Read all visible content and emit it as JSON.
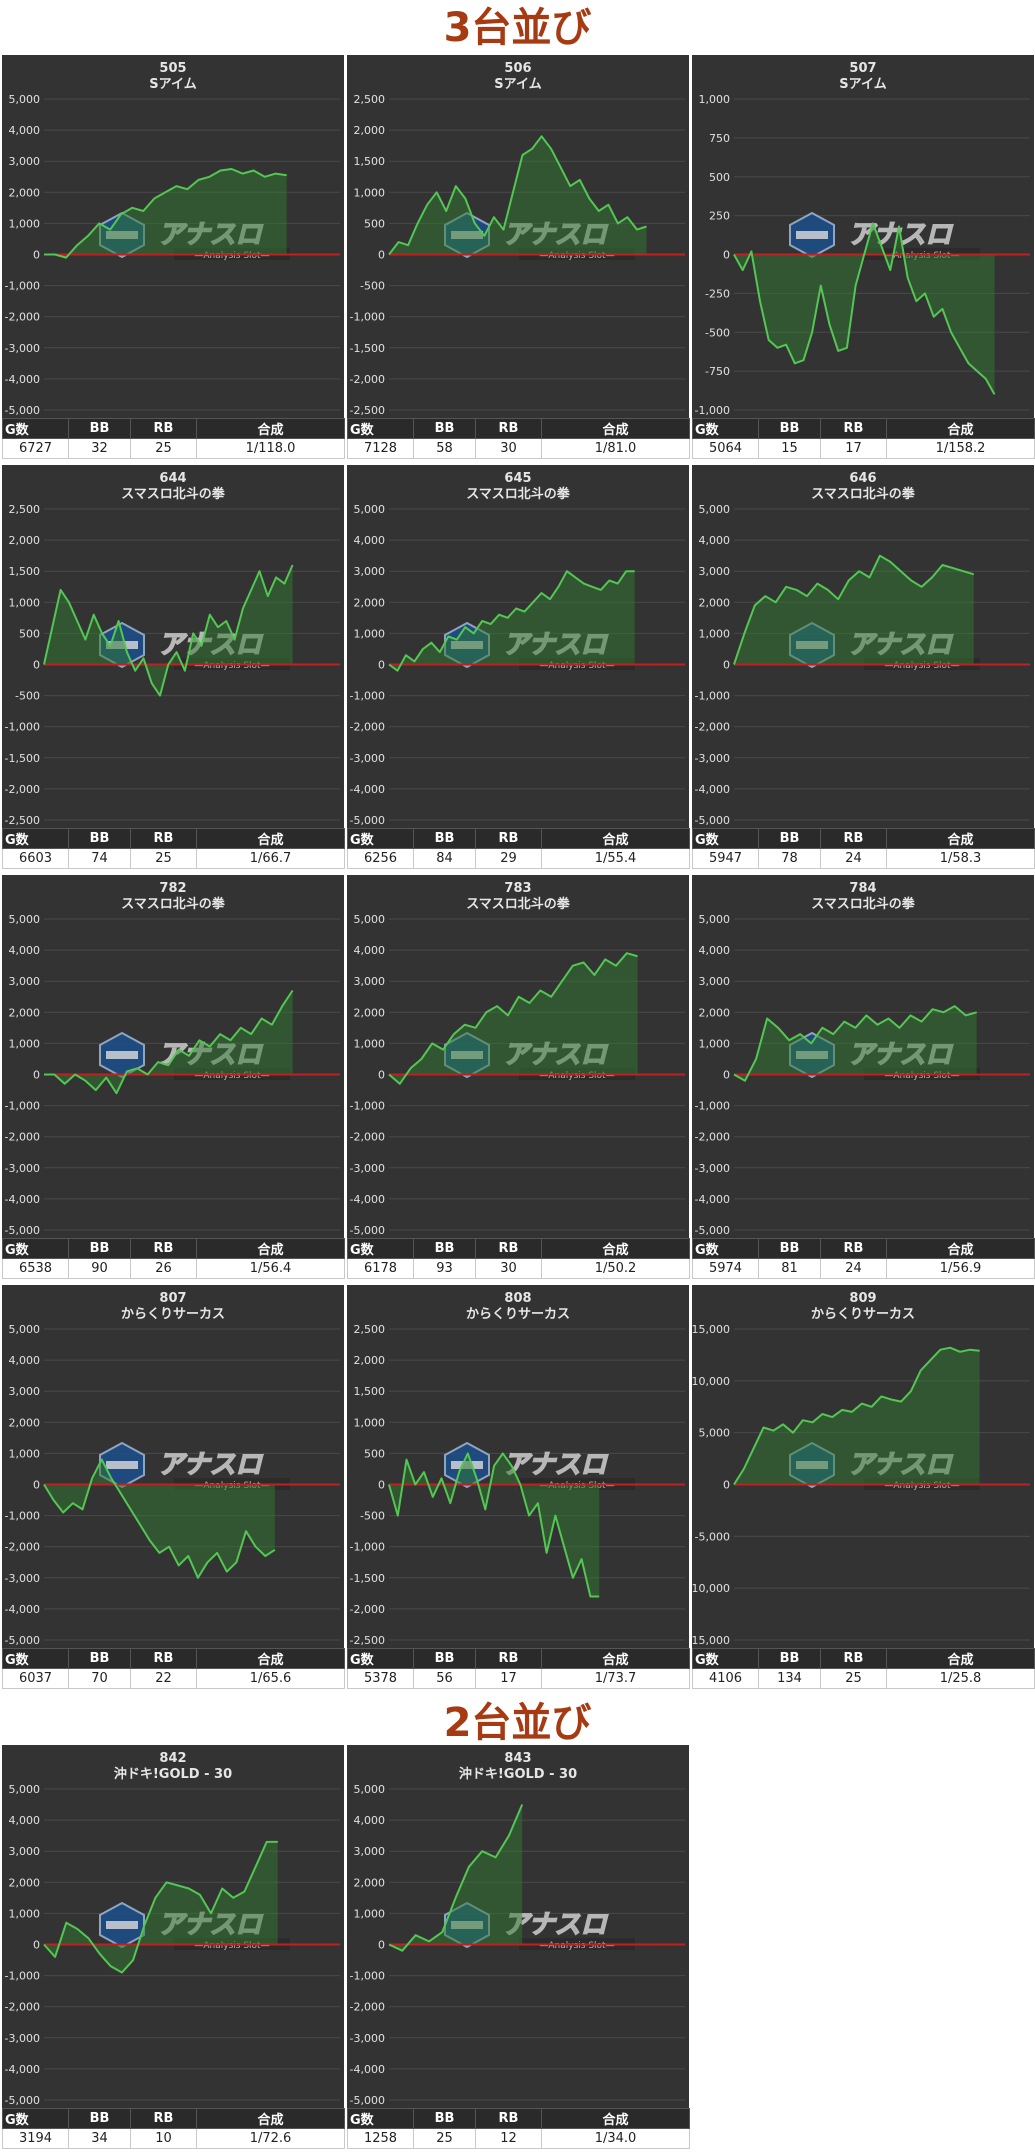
{
  "page": {
    "section1_title": "3台並び",
    "section2_title": "2台並び",
    "watermark_brand": "アナスロ",
    "watermark_sub": "—Analysis Slot—",
    "table_headers": {
      "g": "G数",
      "bb": "BB",
      "rb": "RB",
      "combined": "合成"
    },
    "colors": {
      "panel_bg": "#333333",
      "line": "#53c653",
      "fill": "#2f7a2f",
      "zero_line": "#c02020",
      "title": "#a63a12"
    }
  },
  "chart_data": [
    {
      "type": "area",
      "machine_no": "505",
      "model": "Sアイム",
      "ylim": [
        -5000,
        5000
      ],
      "yticks": [
        5000,
        4000,
        3000,
        2000,
        1000,
        0,
        -1000,
        -2000,
        -3000,
        -4000,
        -5000
      ],
      "x_end": 0.82,
      "y": [
        0,
        0,
        -100,
        300,
        600,
        1000,
        800,
        1300,
        1500,
        1400,
        1800,
        2000,
        2200,
        2100,
        2400,
        2500,
        2700,
        2750,
        2600,
        2700,
        2500,
        2600,
        2550
      ],
      "stats": {
        "g": "6727",
        "bb": "32",
        "rb": "25",
        "combined": "1/118.0"
      }
    },
    {
      "type": "area",
      "machine_no": "506",
      "model": "Sアイム",
      "ylim": [
        -2500,
        2500
      ],
      "yticks": [
        2500,
        2000,
        1500,
        1000,
        500,
        0,
        -500,
        -1000,
        -1500,
        -2000,
        -2500
      ],
      "x_end": 0.87,
      "y": [
        0,
        200,
        150,
        500,
        800,
        1000,
        700,
        1100,
        900,
        500,
        300,
        600,
        400,
        1000,
        1600,
        1700,
        1900,
        1700,
        1400,
        1100,
        1200,
        900,
        700,
        800,
        500,
        600,
        400,
        450
      ],
      "stats": {
        "g": "7128",
        "bb": "58",
        "rb": "30",
        "combined": "1/81.0"
      }
    },
    {
      "type": "area",
      "machine_no": "507",
      "model": "Sアイム",
      "ylim": [
        -1000,
        1000
      ],
      "yticks": [
        1000,
        750,
        500,
        250,
        0,
        -250,
        -500,
        -750,
        -1000
      ],
      "x_end": 0.88,
      "y": [
        0,
        -100,
        20,
        -300,
        -550,
        -600,
        -580,
        -700,
        -680,
        -500,
        -200,
        -450,
        -620,
        -600,
        -200,
        0,
        200,
        50,
        -100,
        180,
        -150,
        -300,
        -250,
        -400,
        -350,
        -500,
        -600,
        -700,
        -750,
        -800,
        -900
      ],
      "stats": {
        "g": "5064",
        "bb": "15",
        "rb": "17",
        "combined": "1/158.2"
      }
    },
    {
      "type": "area",
      "machine_no": "644",
      "model": "スマスロ北斗の拳",
      "ylim": [
        -2500,
        2500
      ],
      "yticks": [
        2500,
        2000,
        1500,
        1000,
        500,
        0,
        -500,
        -1000,
        -1500,
        -2000,
        -2500
      ],
      "x_end": 0.84,
      "y": [
        0,
        600,
        1200,
        1000,
        700,
        400,
        800,
        500,
        300,
        700,
        200,
        -100,
        100,
        -300,
        -500,
        0,
        200,
        -100,
        500,
        300,
        800,
        600,
        700,
        400,
        900,
        1200,
        1500,
        1100,
        1400,
        1300,
        1600
      ],
      "stats": {
        "g": "6603",
        "bb": "74",
        "rb": "25",
        "combined": "1/66.7"
      }
    },
    {
      "type": "area",
      "machine_no": "645",
      "model": "スマスロ北斗の拳",
      "ylim": [
        -5000,
        5000
      ],
      "yticks": [
        5000,
        4000,
        3000,
        2000,
        1000,
        0,
        -1000,
        -2000,
        -3000,
        -4000,
        -5000
      ],
      "x_end": 0.83,
      "y": [
        0,
        -200,
        300,
        100,
        500,
        700,
        400,
        900,
        800,
        1200,
        1000,
        1400,
        1300,
        1600,
        1500,
        1800,
        1700,
        2000,
        2300,
        2100,
        2500,
        3000,
        2800,
        2600,
        2500,
        2400,
        2700,
        2600,
        3000,
        3000
      ],
      "stats": {
        "g": "6256",
        "bb": "84",
        "rb": "29",
        "combined": "1/55.4"
      }
    },
    {
      "type": "area",
      "machine_no": "646",
      "model": "スマスロ北斗の拳",
      "ylim": [
        -5000,
        5000
      ],
      "yticks": [
        5000,
        4000,
        3000,
        2000,
        1000,
        0,
        -1000,
        -2000,
        -3000,
        -4000,
        -5000
      ],
      "x_end": 0.81,
      "y": [
        0,
        1000,
        1900,
        2200,
        2000,
        2500,
        2400,
        2200,
        2600,
        2400,
        2100,
        2700,
        3000,
        2800,
        3500,
        3300,
        3000,
        2700,
        2500,
        2800,
        3200,
        3100,
        3000,
        2900
      ],
      "stats": {
        "g": "5947",
        "bb": "78",
        "rb": "24",
        "combined": "1/58.3"
      }
    },
    {
      "type": "area",
      "machine_no": "782",
      "model": "スマスロ北斗の拳",
      "ylim": [
        -5000,
        5000
      ],
      "yticks": [
        5000,
        4000,
        3000,
        2000,
        1000,
        0,
        -1000,
        -2000,
        -3000,
        -4000,
        -5000
      ],
      "x_end": 0.84,
      "y": [
        0,
        0,
        -300,
        0,
        -200,
        -500,
        -100,
        -600,
        100,
        200,
        0,
        400,
        300,
        800,
        600,
        1100,
        900,
        1300,
        1100,
        1500,
        1300,
        1800,
        1600,
        2200,
        2700
      ],
      "stats": {
        "g": "6538",
        "bb": "90",
        "rb": "26",
        "combined": "1/56.4"
      }
    },
    {
      "type": "area",
      "machine_no": "783",
      "model": "スマスロ北斗の拳",
      "ylim": [
        -5000,
        5000
      ],
      "yticks": [
        5000,
        4000,
        3000,
        2000,
        1000,
        0,
        -1000,
        -2000,
        -3000,
        -4000,
        -5000
      ],
      "x_end": 0.84,
      "y": [
        0,
        -300,
        200,
        500,
        1000,
        800,
        1300,
        1600,
        1500,
        2000,
        2200,
        1900,
        2500,
        2300,
        2700,
        2500,
        3000,
        3500,
        3600,
        3200,
        3700,
        3500,
        3900,
        3800
      ],
      "stats": {
        "g": "6178",
        "bb": "93",
        "rb": "30",
        "combined": "1/50.2"
      }
    },
    {
      "type": "area",
      "machine_no": "784",
      "model": "スマスロ北斗の拳",
      "ylim": [
        -5000,
        5000
      ],
      "yticks": [
        5000,
        4000,
        3000,
        2000,
        1000,
        0,
        -1000,
        -2000,
        -3000,
        -4000,
        -5000
      ],
      "x_end": 0.82,
      "y": [
        0,
        -200,
        500,
        1800,
        1500,
        1100,
        1300,
        1000,
        1500,
        1300,
        1700,
        1500,
        1900,
        1600,
        1800,
        1500,
        1900,
        1700,
        2100,
        2000,
        2200,
        1900,
        2000
      ],
      "stats": {
        "g": "5974",
        "bb": "81",
        "rb": "24",
        "combined": "1/56.9"
      }
    },
    {
      "type": "area",
      "machine_no": "807",
      "model": "からくりサーカス",
      "ylim": [
        -5000,
        5000
      ],
      "yticks": [
        5000,
        4000,
        3000,
        2000,
        1000,
        0,
        -1000,
        -2000,
        -3000,
        -4000,
        -5000
      ],
      "x_end": 0.78,
      "y": [
        0,
        -500,
        -900,
        -600,
        -800,
        200,
        800,
        200,
        -300,
        -800,
        -1300,
        -1800,
        -2200,
        -2000,
        -2600,
        -2300,
        -3000,
        -2500,
        -2200,
        -2800,
        -2500,
        -1500,
        -2000,
        -2300,
        -2100
      ],
      "stats": {
        "g": "6037",
        "bb": "70",
        "rb": "22",
        "combined": "1/65.6"
      }
    },
    {
      "type": "area",
      "machine_no": "808",
      "model": "からくりサーカス",
      "ylim": [
        -2500,
        2500
      ],
      "yticks": [
        2500,
        2000,
        1500,
        1000,
        500,
        0,
        -500,
        -1000,
        -1500,
        -2000,
        -2500
      ],
      "x_end": 0.71,
      "y": [
        0,
        -500,
        400,
        0,
        200,
        -200,
        100,
        -300,
        200,
        500,
        100,
        -400,
        300,
        500,
        300,
        0,
        -500,
        -300,
        -1100,
        -500,
        -1000,
        -1500,
        -1200,
        -1800,
        -1800
      ],
      "stats": {
        "g": "5378",
        "bb": "56",
        "rb": "17",
        "combined": "1/73.7"
      }
    },
    {
      "type": "area",
      "machine_no": "809",
      "model": "からくりサーカス",
      "ylim": [
        -15000,
        15000
      ],
      "yticks": [
        15000,
        10000,
        5000,
        0,
        -5000,
        -10000,
        -15000
      ],
      "x_end": 0.83,
      "y": [
        0,
        1500,
        3500,
        5500,
        5200,
        5800,
        5000,
        6200,
        6000,
        6800,
        6500,
        7200,
        7000,
        7800,
        7500,
        8500,
        8200,
        8000,
        9000,
        11000,
        12000,
        13000,
        13200,
        12800,
        13000,
        12900
      ],
      "stats": {
        "g": "4106",
        "bb": "134",
        "rb": "25",
        "combined": "1/25.8"
      }
    },
    {
      "type": "area",
      "machine_no": "842",
      "model": "沖ドキ!GOLD - 30",
      "ylim": [
        -5000,
        5000
      ],
      "yticks": [
        5000,
        4000,
        3000,
        2000,
        1000,
        0,
        -1000,
        -2000,
        -3000,
        -4000,
        -5000
      ],
      "x_end": 0.79,
      "y": [
        0,
        -400,
        700,
        500,
        200,
        -300,
        -700,
        -900,
        -500,
        600,
        1500,
        2000,
        1900,
        1800,
        1600,
        1000,
        1800,
        1500,
        1700,
        2500,
        3300,
        3300
      ],
      "stats": {
        "g": "3194",
        "bb": "34",
        "rb": "10",
        "combined": "1/72.6"
      }
    },
    {
      "type": "area",
      "machine_no": "843",
      "model": "沖ドキ!GOLD - 30",
      "ylim": [
        -5000,
        5000
      ],
      "yticks": [
        5000,
        4000,
        3000,
        2000,
        1000,
        0,
        -1000,
        -2000,
        -3000,
        -4000,
        -5000
      ],
      "x_end": 0.45,
      "y": [
        0,
        -200,
        300,
        100,
        400,
        1500,
        2500,
        3000,
        2800,
        3500,
        4500
      ],
      "stats": {
        "g": "1258",
        "bb": "25",
        "rb": "12",
        "combined": "1/34.0"
      }
    }
  ]
}
